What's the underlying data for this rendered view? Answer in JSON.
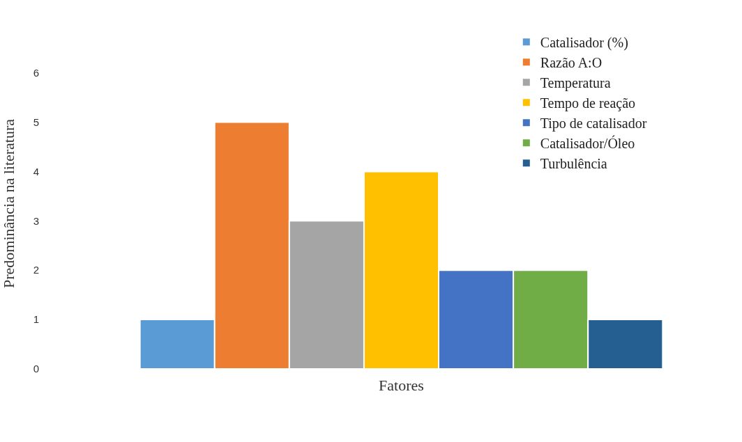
{
  "chart_data": {
    "type": "bar",
    "categories": [
      null
    ],
    "xlabel": "Fatores",
    "ylabel": "Predominância na literatura",
    "ylim": [
      0,
      6.7
    ],
    "yticks": [
      0,
      1,
      2,
      3,
      4,
      5,
      6
    ],
    "legend": "top right",
    "tick_labels": "y",
    "series": [
      {
        "name": "Catalisador (%)",
        "color": "#5b9bd5",
        "values": [
          1
        ]
      },
      {
        "name": "Razão A:O",
        "color": "#ed7d31",
        "values": [
          5
        ]
      },
      {
        "name": "Temperatura",
        "color": "#a5a5a5",
        "values": [
          3
        ]
      },
      {
        "name": "Tempo de reação",
        "color": "#ffc000",
        "values": [
          4
        ]
      },
      {
        "name": "Tipo de catalisador",
        "color": "#4472c4",
        "values": [
          2
        ]
      },
      {
        "name": "Catalisador/Óleo",
        "color": "#70ad47",
        "values": [
          2
        ]
      },
      {
        "name": "Turbulência",
        "color": "#255e91",
        "values": [
          1
        ]
      }
    ]
  }
}
